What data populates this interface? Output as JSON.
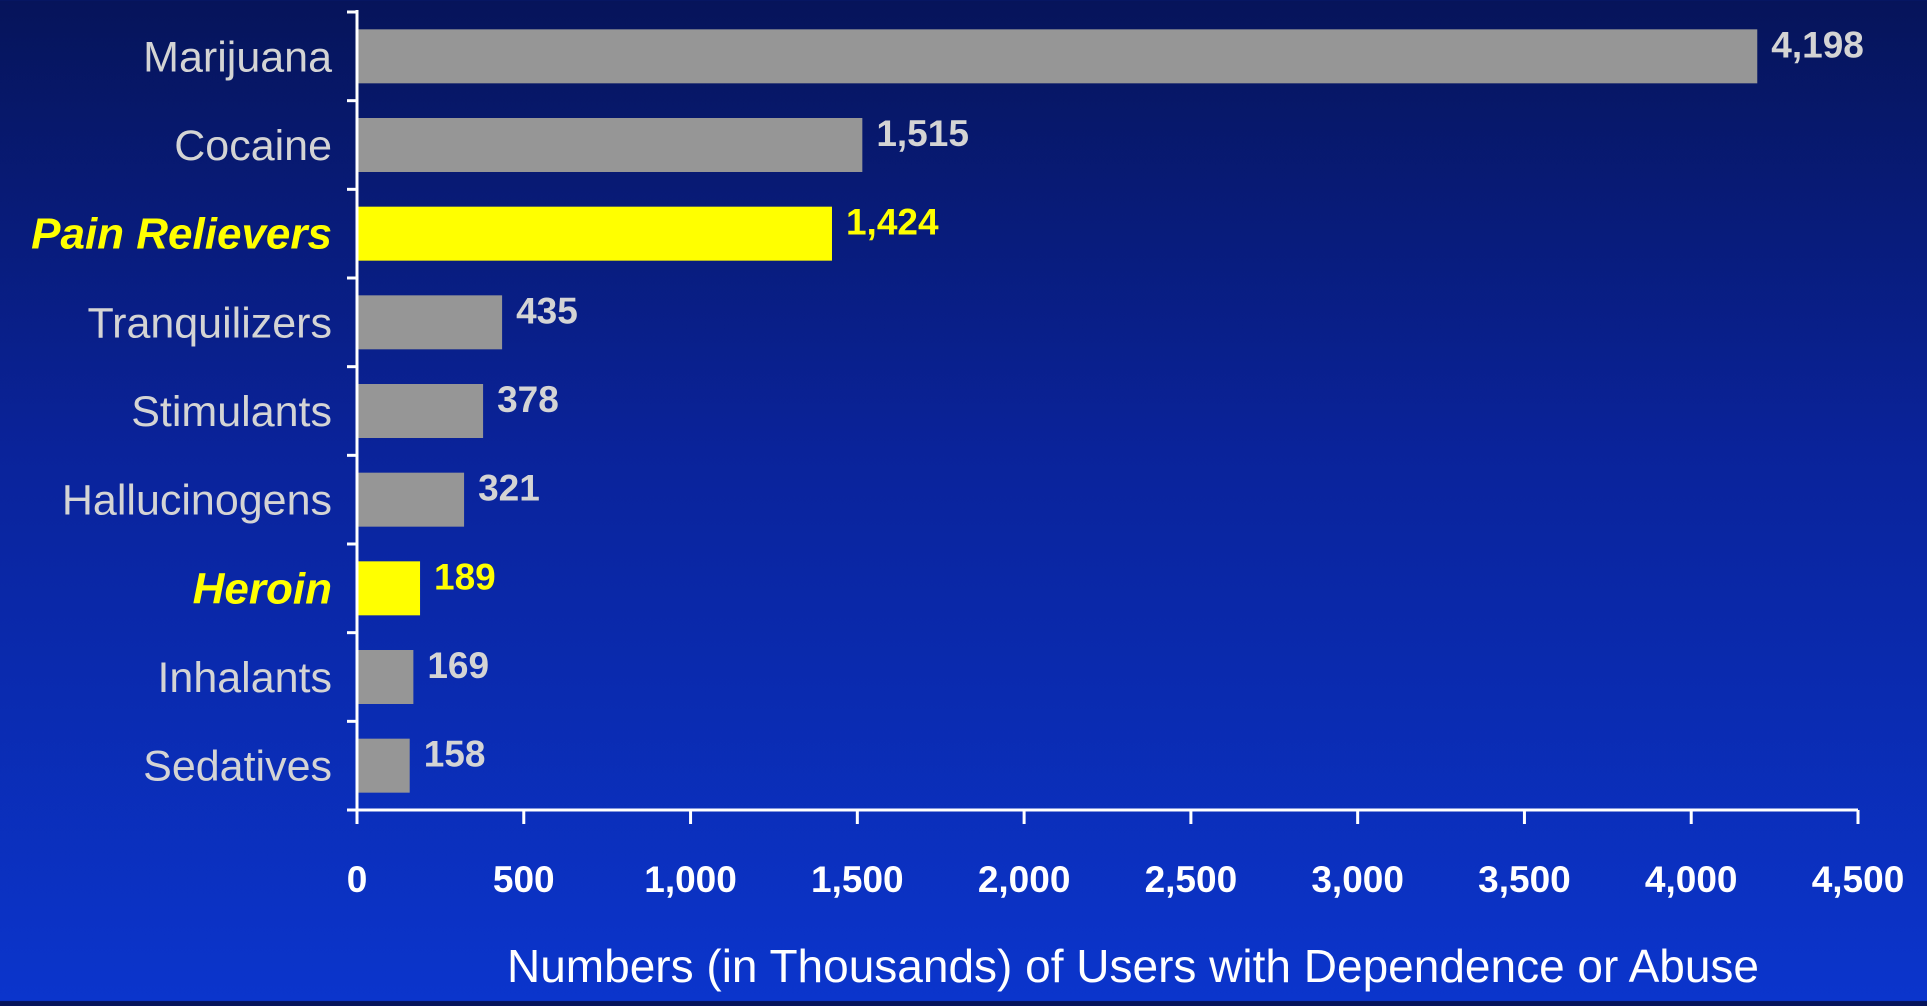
{
  "chart_data": {
    "type": "bar",
    "orientation": "horizontal",
    "title": "",
    "xlabel": "Numbers (in Thousands) of Users with Dependence or Abuse",
    "ylabel": "",
    "xlim": [
      0,
      4500
    ],
    "x_ticks": [
      0,
      500,
      1000,
      1500,
      2000,
      2500,
      3000,
      3500,
      4000,
      4500
    ],
    "x_tick_labels": [
      "0",
      "500",
      "1,000",
      "1,500",
      "2,000",
      "2,500",
      "3,000",
      "3,500",
      "4,000",
      "4,500"
    ],
    "grid": false,
    "legend": "none",
    "categories": [
      "Marijuana",
      "Cocaine",
      "Pain Relievers",
      "Tranquilizers",
      "Stimulants",
      "Hallucinogens",
      "Heroin",
      "Inhalants",
      "Sedatives"
    ],
    "values": [
      4198,
      1515,
      1424,
      435,
      378,
      321,
      189,
      169,
      158
    ],
    "value_labels": [
      "4,198",
      "1,515",
      "1,424",
      "435",
      "378",
      "321",
      "189",
      "169",
      "158"
    ],
    "highlighted": [
      false,
      false,
      true,
      false,
      false,
      false,
      true,
      false,
      false
    ],
    "colors": {
      "bar": "#969696",
      "highlight": "#ffff00",
      "label": "#d4d4d4",
      "axis": "#ffffff",
      "tick_label": "#ffffff",
      "axis_title": "#ffffff"
    }
  }
}
